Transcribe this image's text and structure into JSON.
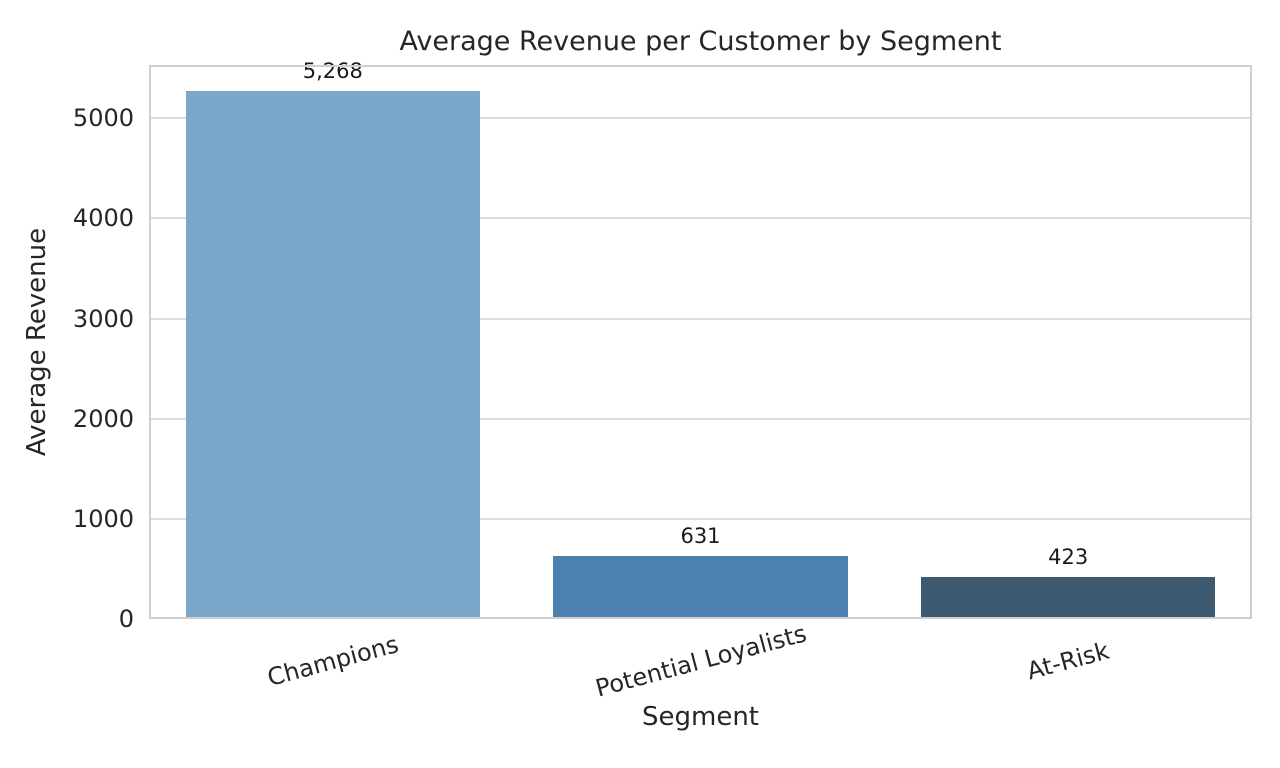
{
  "chart_data": {
    "type": "bar",
    "title": "Average Revenue per Customer by Segment",
    "xlabel": "Segment",
    "ylabel": "Average Revenue",
    "categories": [
      "Champions",
      "Potential Loyalists",
      "At-Risk"
    ],
    "values": [
      5268,
      631,
      423
    ],
    "value_labels": [
      "5,268",
      "631",
      "423"
    ],
    "bar_colors": [
      "#7BA8CA",
      "#4A81AF",
      "#3D5A70"
    ],
    "ylim": [
      0,
      5531
    ],
    "yticks": [
      0,
      1000,
      2000,
      3000,
      4000,
      5000
    ],
    "ytick_labels": [
      "0",
      "1000",
      "2000",
      "3000",
      "4000",
      "5000"
    ],
    "xtick_rotation_deg": 15,
    "grid": "horizontal",
    "legend": "none",
    "colors": {
      "background": "#ffffff",
      "grid": "#dcdcdc",
      "spine": "#cfcfcf",
      "text": "#262626",
      "value_label_text": "#1a1a1a"
    }
  }
}
